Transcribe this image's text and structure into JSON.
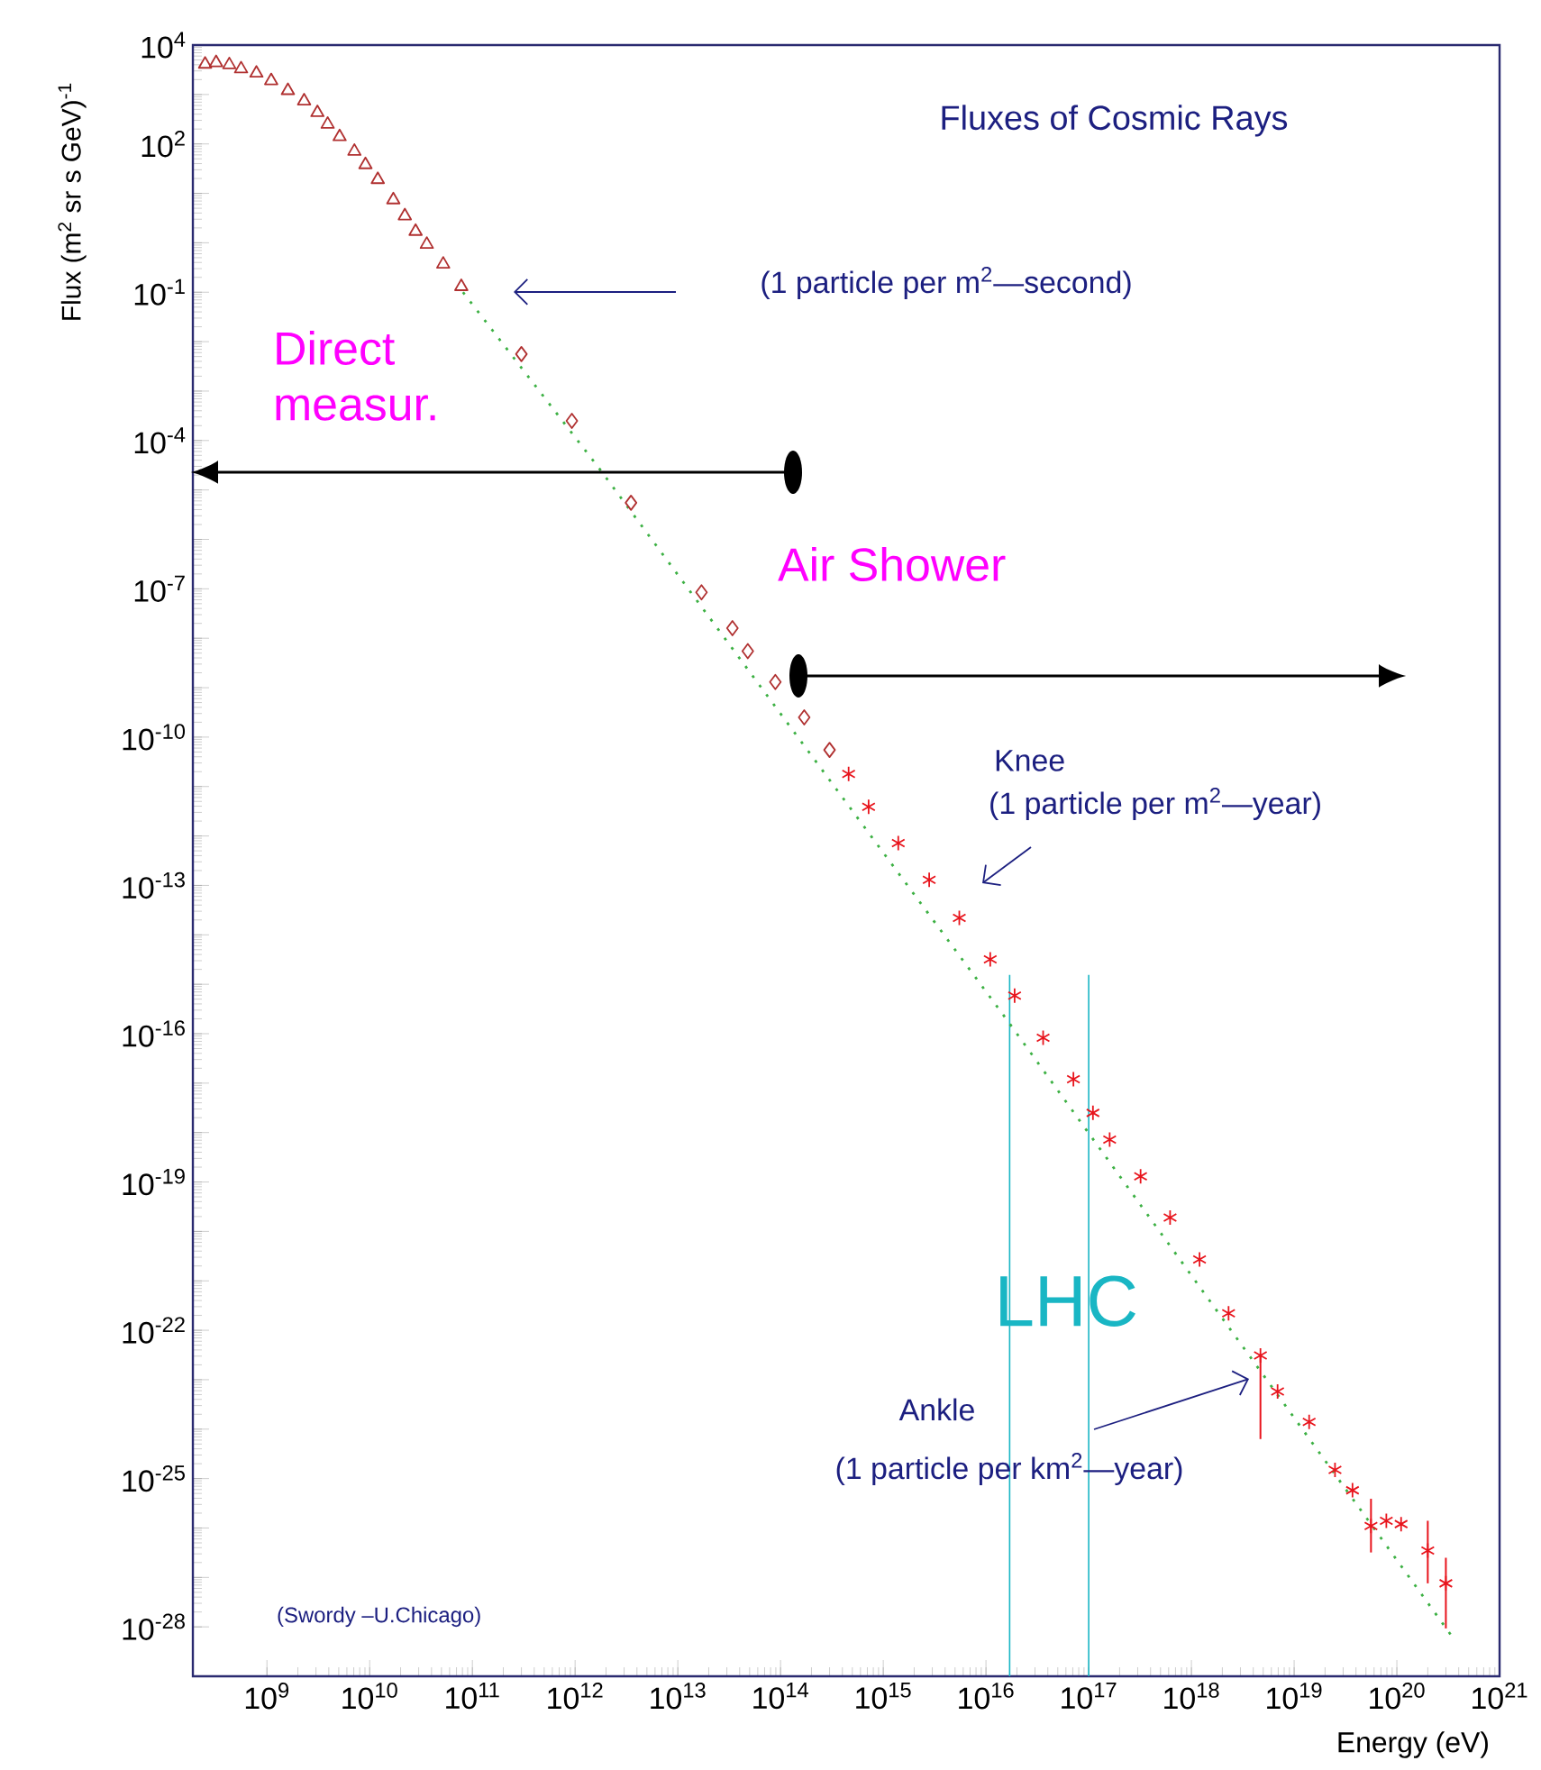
{
  "chart_data": {
    "type": "scatter",
    "title": "Fluxes of Cosmic Rays",
    "xlabel": "Energy (eV)",
    "ylabel": "Flux (m$^{2}$ sr s GeV)$^{-1}$",
    "log": "xy",
    "xlim": [
      190000000.0,
      1e+21
    ],
    "ylim": [
      1e-29,
      10000.0
    ],
    "xticks": [
      {
        "value": 1000000000.0,
        "label": "10$^{9}$"
      },
      {
        "value": 10000000000.0,
        "label": "10$^{10}$"
      },
      {
        "value": 100000000000.0,
        "label": "10$^{11}$"
      },
      {
        "value": 1000000000000.0,
        "label": "10$^{12}$"
      },
      {
        "value": 10000000000000.0,
        "label": "10$^{13}$"
      },
      {
        "value": 100000000000000.0,
        "label": "10$^{14}$"
      },
      {
        "value": 1000000000000000.0,
        "label": "10$^{15}$"
      },
      {
        "value": 1e+16,
        "label": "10$^{16}$"
      },
      {
        "value": 1e+17,
        "label": "10$^{17}$"
      },
      {
        "value": 1e+18,
        "label": "10$^{18}$"
      },
      {
        "value": 1e+19,
        "label": "10$^{19}$"
      },
      {
        "value": 1e+20,
        "label": "10$^{20}$"
      },
      {
        "value": 1e+21,
        "label": "10$^{21}$"
      }
    ],
    "yticks": [
      {
        "value": 1e-28,
        "label": "10$^{-28}$"
      },
      {
        "value": 1e-27,
        "label": null
      },
      {
        "value": 1e-26,
        "label": null
      },
      {
        "value": 1e-25,
        "label": "10$^{-25}$"
      },
      {
        "value": 1e-24,
        "label": null
      },
      {
        "value": 1e-23,
        "label": null
      },
      {
        "value": 1e-22,
        "label": "10$^{-22}$"
      },
      {
        "value": 1e-21,
        "label": null
      },
      {
        "value": 1e-20,
        "label": null
      },
      {
        "value": 1e-19,
        "label": "10$^{-19}$"
      },
      {
        "value": 1e-18,
        "label": null
      },
      {
        "value": 1e-17,
        "label": null
      },
      {
        "value": 1e-16,
        "label": "10$^{-16}$"
      },
      {
        "value": 1e-15,
        "label": null
      },
      {
        "value": 1e-14,
        "label": null
      },
      {
        "value": 1e-13,
        "label": "10$^{-13}$"
      },
      {
        "value": 1e-12,
        "label": null
      },
      {
        "value": 1e-11,
        "label": null
      },
      {
        "value": 1e-10,
        "label": "10$^{-10}$"
      },
      {
        "value": 1e-09,
        "label": null
      },
      {
        "value": 1e-08,
        "label": null
      },
      {
        "value": 1e-07,
        "label": "10$^{-7}$"
      },
      {
        "value": 1e-06,
        "label": null
      },
      {
        "value": 1e-05,
        "label": null
      },
      {
        "value": 0.0001,
        "label": "10$^{-4}$"
      },
      {
        "value": 0.001,
        "label": null
      },
      {
        "value": 0.01,
        "label": null
      },
      {
        "value": 0.1,
        "label": "10$^{-1}$"
      },
      {
        "value": 1,
        "label": null
      },
      {
        "value": 10,
        "label": null
      },
      {
        "value": 100,
        "label": "10$^{2}$"
      },
      {
        "value": 1000,
        "label": null
      },
      {
        "value": 10000.0,
        "label": "10$^{4}$"
      }
    ],
    "series": [
      {
        "color": "#b03030",
        "marker": "triangle",
        "x": [
          250000000.0,
          320000000.0,
          430000000.0,
          560000000.0,
          790000000.0,
          1100000000.0,
          1600000000.0,
          2300000000.0,
          3100000000.0,
          3900000000.0,
          5100000000.0,
          7100000000.0,
          9100000000.0,
          12000000000.0,
          17000000000.0,
          22000000000.0,
          28000000000.0,
          36000000000.0,
          52000000000.0,
          78000000000.0
        ],
        "values": [
          4100.0,
          4400.0,
          4000.0,
          3300.0,
          2700.0,
          1900.0,
          1200.0,
          740.0,
          430.0,
          250.0,
          140.0,
          71,
          38,
          19,
          7.4,
          3.5,
          1.7,
          0.93,
          0.37,
          0.13
        ]
      },
      {
        "color": "#b03030",
        "marker": "diamond",
        "x": [
          300000000000.0,
          930000000000.0,
          3500000000000.0,
          17000000000000.0,
          34000000000000.0,
          48000000000000.0,
          89000000000000.0,
          170000000000000.0,
          300000000000000.0
        ],
        "values": [
          0.0056,
          0.00025,
          5.5e-06,
          8.5e-08,
          1.6e-08,
          5.5e-09,
          1.3e-09,
          2.5e-10,
          5.5e-11
        ]
      },
      {
        "color": "#e8141c",
        "marker": "cross",
        "x": [
          460000000000000.0,
          720000000000000.0,
          1400000000000000.0,
          2800000000000000.0,
          5500000000000000.0,
          1.1e+16,
          1.9e+16,
          3.6e+16,
          7.1e+16,
          1.1e+17
        ],
        "values": [
          1.8e-11,
          3.9e-12,
          7.2e-13,
          1.3e-13,
          2.2e-14,
          3.2e-15,
          5.9e-16,
          8.3e-17,
          1.2e-17,
          2.5e-18
        ]
      },
      {
        "color": "#e8141c",
        "marker": "cross",
        "x": [
          1.6e+17,
          3.2e+17,
          6.2e+17,
          1.2e+18,
          2.3e+18,
          4.7e+18,
          6.9e+18,
          1.4e+19,
          2.5e+19,
          3.7e+19,
          5.6e+19,
          7.9e+19,
          1.1e+20,
          2e+20,
          3e+20
        ],
        "values": [
          7.2e-19,
          1.3e-19,
          1.9e-20,
          2.7e-21,
          2.2e-22,
          3.1e-23,
          5.8e-24,
          1.4e-24,
          1.5e-25,
          5.8e-26,
          1.1e-26,
          1.4e-26,
          1.2e-26,
          3.5e-27,
          7.6e-28
        ],
        "errors": [
          null,
          null,
          null,
          null,
          null,
          [
            6.3e-25,
            3.2e-23
          ],
          null,
          null,
          null,
          null,
          [
            3.2e-27,
            3.9e-26
          ],
          null,
          null,
          [
            7.6e-28,
            1.4e-26
          ],
          [
            9.3e-29,
            2.5e-27
          ]
        ]
      },
      {
        "type": "line",
        "color": "#3cb043",
        "marker": "none",
        "line_style": "dotted",
        "x": [
          81000000000.0,
          1700000000000.0,
          1.6e+16,
          3.7e+20
        ],
        "values": [
          0.1,
          2.8e-05,
          1.9e-16,
          5.2e-29
        ]
      }
    ],
    "ref_lines": [
      {
        "axis": "x",
        "value": 1.7e+16,
        "color": "#19b6c4"
      },
      {
        "axis": "x",
        "value": 1e+17,
        "label": "LHC",
        "color": "#19b6c4"
      }
    ],
    "annotations": [
      "(1 particle per m$^{2}$—second)",
      "Knee",
      "(1 particle per m$^{2}$—year)",
      "Ankle",
      "(1 particle per km$^{2}$—year)",
      "Direct measur.",
      "Air Shower",
      "(Swordy –U.Chicago)"
    ]
  }
}
